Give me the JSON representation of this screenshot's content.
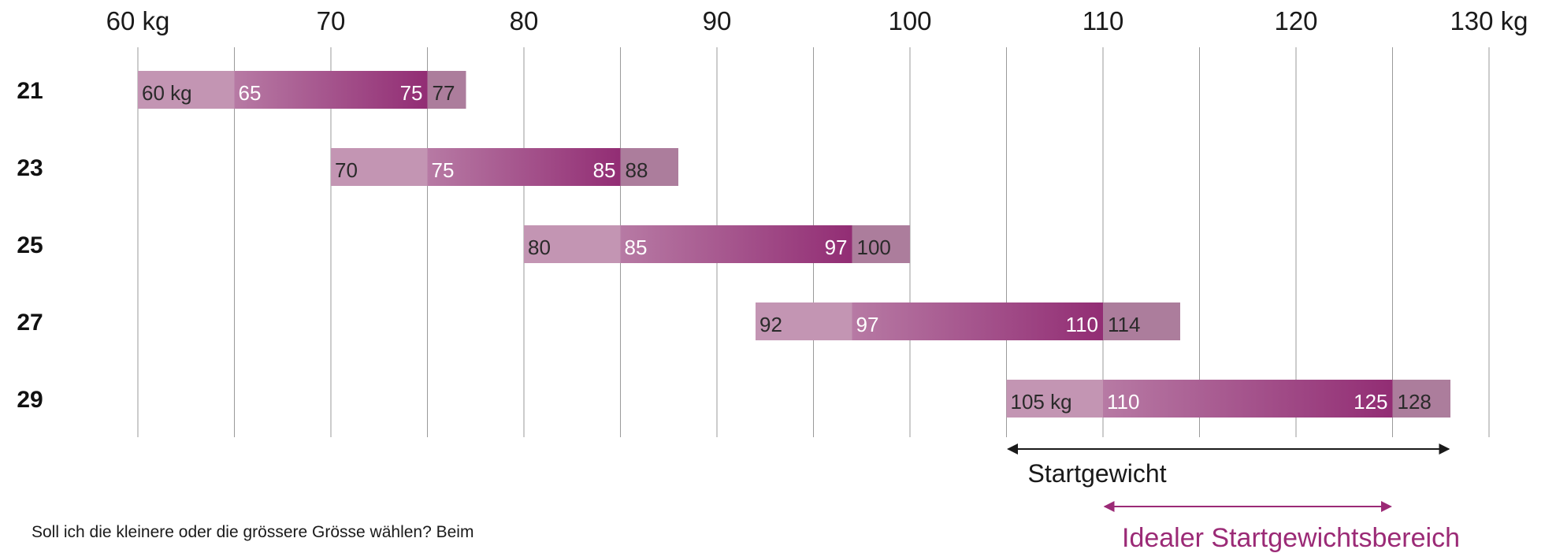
{
  "chart_data": {
    "type": "bar",
    "x_ticks": [
      "60 kg",
      "70",
      "80",
      "90",
      "100",
      "110",
      "120",
      "130 kg"
    ],
    "x_tick_values": [
      60,
      70,
      80,
      90,
      100,
      110,
      120,
      130
    ],
    "xlim": [
      60,
      130
    ],
    "grid": true,
    "rows": [
      {
        "label": "21",
        "min": 60,
        "ideal_start": 65,
        "ideal_end": 75,
        "max": 77,
        "labels": [
          "60 kg",
          "65",
          "75",
          "77"
        ]
      },
      {
        "label": "23",
        "min": 70,
        "ideal_start": 75,
        "ideal_end": 85,
        "max": 88,
        "labels": [
          "70",
          "75",
          "85",
          "88"
        ]
      },
      {
        "label": "25",
        "min": 80,
        "ideal_start": 85,
        "ideal_end": 97,
        "max": 100,
        "labels": [
          "80",
          "85",
          "97",
          "100"
        ]
      },
      {
        "label": "27",
        "min": 92,
        "ideal_start": 97,
        "ideal_end": 110,
        "max": 114,
        "labels": [
          "92",
          "97",
          "110",
          "114"
        ]
      },
      {
        "label": "29",
        "min": 105,
        "ideal_start": 110,
        "ideal_end": 125,
        "max": 128,
        "labels": [
          "105 kg",
          "110",
          "125",
          "128"
        ]
      }
    ],
    "annotations": {
      "startgewicht": {
        "text": "Startgewicht",
        "from": 105,
        "to": 128
      },
      "ideal": {
        "text": "Idealer Startgewichtsbereich",
        "from": 110,
        "to": 125
      }
    },
    "colors": {
      "light": "#c395b3",
      "ideal_from": "#b77aa4",
      "ideal_to": "#922d74",
      "tail": "#ac7d9c",
      "grid": "#9a9a9a",
      "arrow_black": "#1a1a1a",
      "arrow_accent": "#9b2a76"
    }
  },
  "footer_text": "Soll ich die kleinere oder die grössere Grösse wählen? Beim"
}
